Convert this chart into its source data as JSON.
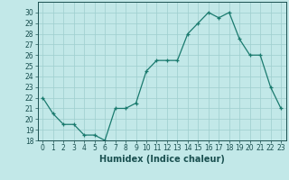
{
  "x": [
    0,
    1,
    2,
    3,
    4,
    5,
    6,
    7,
    8,
    9,
    10,
    11,
    12,
    13,
    14,
    15,
    16,
    17,
    18,
    19,
    20,
    21,
    22,
    23
  ],
  "y": [
    22,
    20.5,
    19.5,
    19.5,
    18.5,
    18.5,
    18,
    21,
    21,
    21.5,
    24.5,
    25.5,
    25.5,
    25.5,
    28,
    29,
    30,
    29.5,
    30,
    27.5,
    26,
    26,
    23,
    21
  ],
  "line_color": "#1a7a6e",
  "marker": "+",
  "bg_color": "#c2e8e8",
  "grid_color": "#9ecece",
  "text_color": "#1a5050",
  "xlabel": "Humidex (Indice chaleur)",
  "ylim": [
    18,
    31
  ],
  "xlim": [
    -0.5,
    23.5
  ],
  "xticks": [
    0,
    1,
    2,
    3,
    4,
    5,
    6,
    7,
    8,
    9,
    10,
    11,
    12,
    13,
    14,
    15,
    16,
    17,
    18,
    19,
    20,
    21,
    22,
    23
  ],
  "yticks": [
    18,
    19,
    20,
    21,
    22,
    23,
    24,
    25,
    26,
    27,
    28,
    29,
    30
  ],
  "tick_fontsize": 5.5,
  "xlabel_fontsize": 7.0
}
